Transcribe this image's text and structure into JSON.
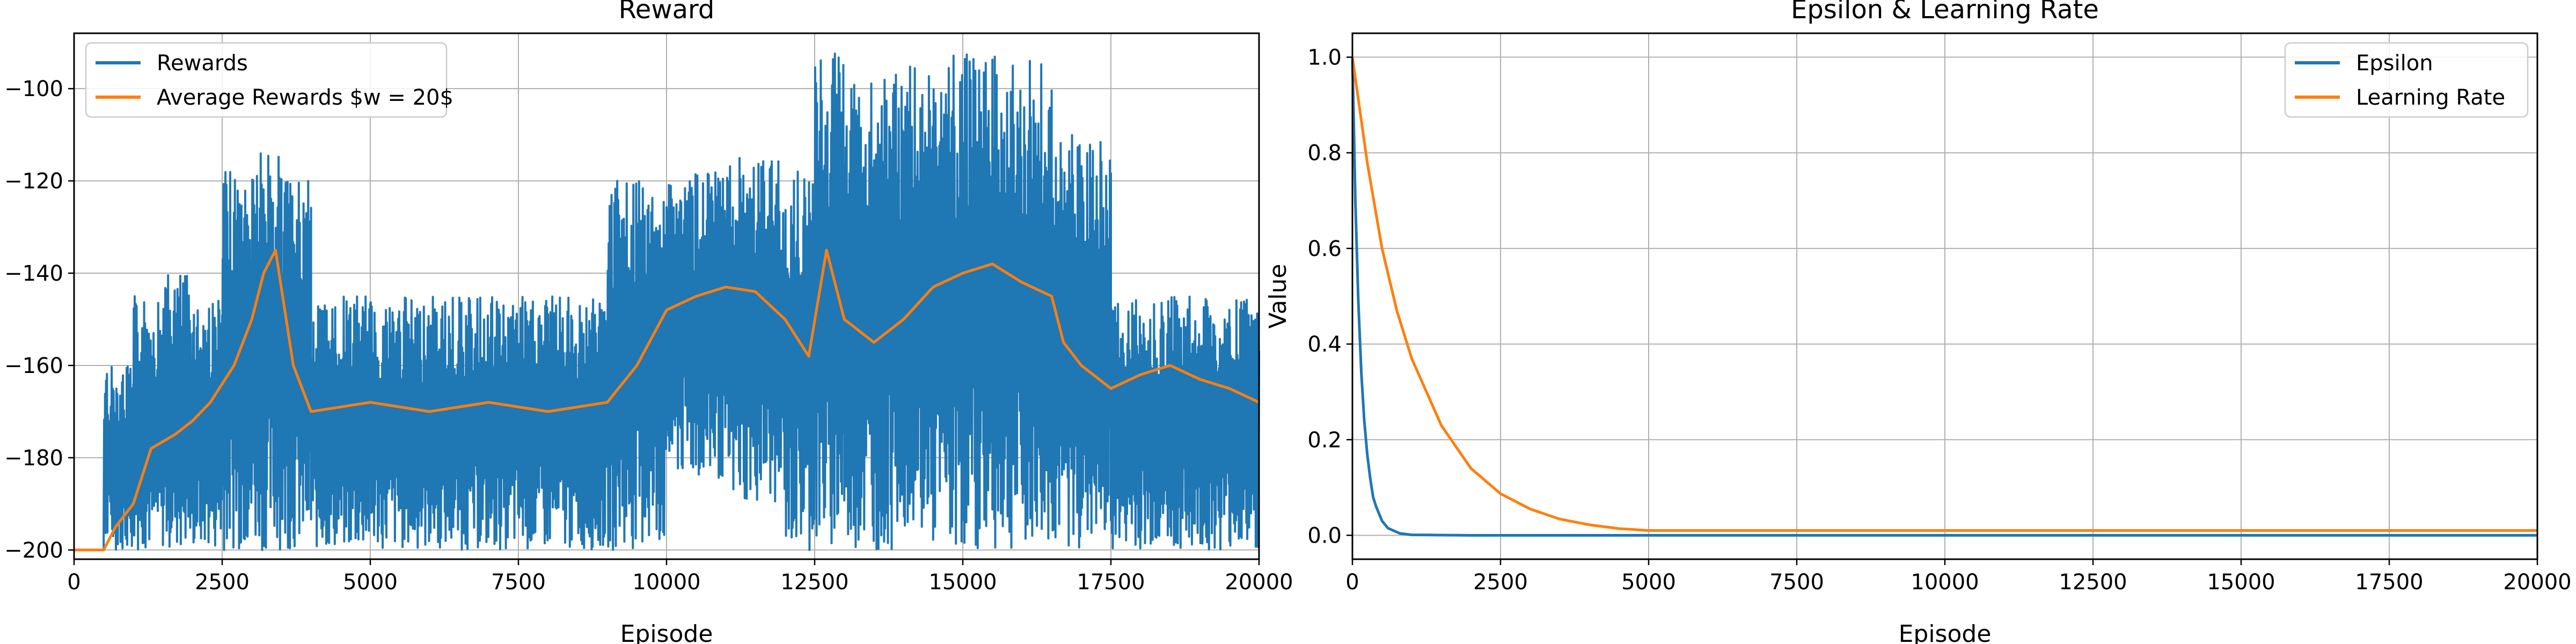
{
  "colors": {
    "blue": "#1f77b4",
    "orange": "#ff7f0e",
    "grid": "#b0b0b0"
  },
  "chart_data": [
    {
      "type": "line",
      "title": "Reward",
      "xlabel": "Episode",
      "ylabel": "",
      "xlim": [
        0,
        20000
      ],
      "ylim": [
        -202,
        -88
      ],
      "xticks": [
        0,
        2500,
        5000,
        7500,
        10000,
        12500,
        15000,
        17500,
        20000
      ],
      "yticks": [
        -200,
        -180,
        -160,
        -140,
        -120,
        -100
      ],
      "grid": true,
      "legend_position": "top-left",
      "series": [
        {
          "name": "Rewards",
          "color": "#1f77b4",
          "segments": [
            {
              "x0": 0,
              "x1": 500,
              "low": -200,
              "high": -200
            },
            {
              "x0": 500,
              "x1": 1000,
              "low": -200,
              "high": -160
            },
            {
              "x0": 1000,
              "x1": 1500,
              "low": -200,
              "high": -145
            },
            {
              "x0": 1500,
              "x1": 2000,
              "low": -200,
              "high": -140
            },
            {
              "x0": 2000,
              "x1": 2500,
              "low": -200,
              "high": -145
            },
            {
              "x0": 2500,
              "x1": 3000,
              "low": -200,
              "high": -118
            },
            {
              "x0": 3000,
              "x1": 3500,
              "low": -200,
              "high": -112
            },
            {
              "x0": 3500,
              "x1": 4000,
              "low": -200,
              "high": -120
            },
            {
              "x0": 4000,
              "x1": 5000,
              "low": -200,
              "high": -145
            },
            {
              "x0": 5000,
              "x1": 6000,
              "low": -200,
              "high": -145
            },
            {
              "x0": 6000,
              "x1": 7000,
              "low": -200,
              "high": -145
            },
            {
              "x0": 7000,
              "x1": 8000,
              "low": -200,
              "high": -145
            },
            {
              "x0": 8000,
              "x1": 9000,
              "low": -200,
              "high": -145
            },
            {
              "x0": 9000,
              "x1": 10000,
              "low": -200,
              "high": -120
            },
            {
              "x0": 10000,
              "x1": 11000,
              "low": -185,
              "high": -118
            },
            {
              "x0": 11000,
              "x1": 12000,
              "low": -190,
              "high": -115
            },
            {
              "x0": 12000,
              "x1": 12500,
              "low": -200,
              "high": -118
            },
            {
              "x0": 12500,
              "x1": 13000,
              "low": -200,
              "high": -92
            },
            {
              "x0": 13000,
              "x1": 13800,
              "low": -200,
              "high": -98
            },
            {
              "x0": 13800,
              "x1": 14500,
              "low": -195,
              "high": -95
            },
            {
              "x0": 14500,
              "x1": 15500,
              "low": -200,
              "high": -92
            },
            {
              "x0": 15500,
              "x1": 16500,
              "low": -200,
              "high": -93
            },
            {
              "x0": 16500,
              "x1": 17500,
              "low": -200,
              "high": -110
            },
            {
              "x0": 17500,
              "x1": 18500,
              "low": -200,
              "high": -145
            },
            {
              "x0": 18500,
              "x1": 19500,
              "low": -200,
              "high": -145
            },
            {
              "x0": 19500,
              "x1": 20000,
              "low": -200,
              "high": -145
            }
          ]
        },
        {
          "name": "Average Rewards $w = 20$",
          "color": "#ff7f0e",
          "x": [
            0,
            500,
            700,
            1000,
            1300,
            1700,
            2000,
            2300,
            2700,
            3000,
            3200,
            3400,
            3700,
            4000,
            5000,
            6000,
            7000,
            8000,
            9000,
            9500,
            10000,
            10500,
            11000,
            11500,
            12000,
            12400,
            12700,
            13000,
            13500,
            14000,
            14500,
            15000,
            15500,
            16000,
            16500,
            16700,
            17000,
            17500,
            18000,
            18500,
            19000,
            19500,
            20000
          ],
          "y": [
            -200,
            -200,
            -195,
            -190,
            -178,
            -175,
            -172,
            -168,
            -160,
            -150,
            -140,
            -135,
            -160,
            -170,
            -168,
            -170,
            -168,
            -170,
            -168,
            -160,
            -148,
            -145,
            -143,
            -144,
            -150,
            -158,
            -135,
            -150,
            -155,
            -150,
            -143,
            -140,
            -138,
            -142,
            -145,
            -155,
            -160,
            -165,
            -162,
            -160,
            -163,
            -165,
            -168
          ]
        }
      ]
    },
    {
      "type": "line",
      "title": "Epsilon & Learning Rate",
      "xlabel": "Episode",
      "ylabel": "Value",
      "xlim": [
        0,
        20000
      ],
      "ylim": [
        -0.05,
        1.05
      ],
      "xticks": [
        0,
        2500,
        5000,
        7500,
        10000,
        12500,
        15000,
        17500,
        20000
      ],
      "yticks": [
        0.0,
        0.2,
        0.4,
        0.6,
        0.8,
        1.0
      ],
      "grid": true,
      "legend_position": "top-right",
      "series": [
        {
          "name": "Epsilon",
          "color": "#1f77b4",
          "x": [
            0,
            50,
            100,
            150,
            200,
            250,
            300,
            350,
            400,
            500,
            600,
            800,
            1000,
            2000,
            5000,
            10000,
            15000,
            20000
          ],
          "y": [
            1.0,
            0.7,
            0.49,
            0.34,
            0.24,
            0.17,
            0.12,
            0.08,
            0.06,
            0.03,
            0.015,
            0.004,
            0.001,
            0.0,
            0.0,
            0.0,
            0.0,
            0.0
          ]
        },
        {
          "name": "Learning Rate",
          "color": "#ff7f0e",
          "x": [
            0,
            250,
            500,
            750,
            1000,
            1500,
            2000,
            2500,
            3000,
            3500,
            4000,
            4500,
            5000,
            10000,
            15000,
            20000
          ],
          "y": [
            1.0,
            0.78,
            0.6,
            0.47,
            0.37,
            0.23,
            0.14,
            0.087,
            0.055,
            0.034,
            0.022,
            0.014,
            0.01,
            0.01,
            0.01,
            0.01
          ]
        }
      ]
    }
  ]
}
